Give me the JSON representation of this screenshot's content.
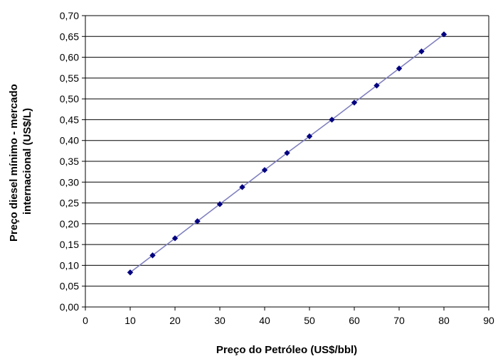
{
  "chart_data": {
    "type": "line",
    "xlabel": "Preço do Petróleo (US$/bbl)",
    "ylabel_lines": [
      "Preço diesel mínimo - mercado",
      "internacional (US$/L)"
    ],
    "xlim": [
      0,
      90
    ],
    "ylim": [
      0,
      0.7
    ],
    "x_ticks": [
      "0",
      "10",
      "20",
      "30",
      "40",
      "50",
      "60",
      "70",
      "80",
      "90"
    ],
    "y_ticks": [
      "0,00",
      "0,05",
      "0,10",
      "0,15",
      "0,20",
      "0,25",
      "0,30",
      "0,35",
      "0,40",
      "0,45",
      "0,50",
      "0,55",
      "0,60",
      "0,65",
      "0,70"
    ],
    "grid": "horizontal",
    "legend": "none",
    "colors": {
      "line": "#8080c0",
      "marker": "#000080",
      "grid": "#000000"
    },
    "series": [
      {
        "x": [
          10,
          15,
          20,
          25,
          30,
          35,
          40,
          45,
          50,
          55,
          60,
          65,
          70,
          75,
          80
        ],
        "y": [
          0.083,
          0.124,
          0.165,
          0.206,
          0.247,
          0.288,
          0.329,
          0.37,
          0.41,
          0.45,
          0.491,
          0.532,
          0.573,
          0.614,
          0.655
        ]
      }
    ]
  }
}
